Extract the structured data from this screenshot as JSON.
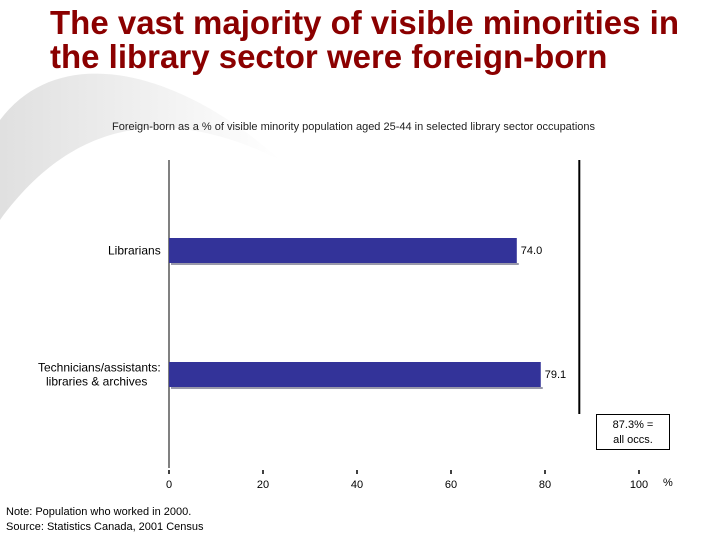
{
  "title": "The vast majority of visible minorities in the library sector were foreign-born",
  "subtitle": "Foreign-born as a % of visible minority population aged 25-44 in selected library sector occupations",
  "callout": {
    "line1": "87.3% =",
    "line2": "all occs."
  },
  "note": {
    "line1": "Note:  Population who worked in 2000.",
    "line2": "Source:  Statistics Canada, 2001 Census"
  },
  "colors": {
    "bar": "#333399",
    "title": "#8b0000"
  },
  "chart_data": {
    "type": "bar",
    "orientation": "horizontal",
    "categories": [
      [
        "Librarians"
      ],
      [
        "Technicians/assistants:",
        "libraries & archives"
      ]
    ],
    "values": [
      74.0,
      79.1
    ],
    "value_labels": [
      "74.0",
      "79.1"
    ],
    "xlim": [
      0,
      100
    ],
    "xticks": [
      0,
      20,
      40,
      60,
      80,
      100
    ],
    "xtick_labels": [
      "0",
      "20",
      "40",
      "60",
      "80",
      "100"
    ],
    "unit": "%",
    "reference_line": {
      "value": 87.3
    },
    "grid": false
  }
}
